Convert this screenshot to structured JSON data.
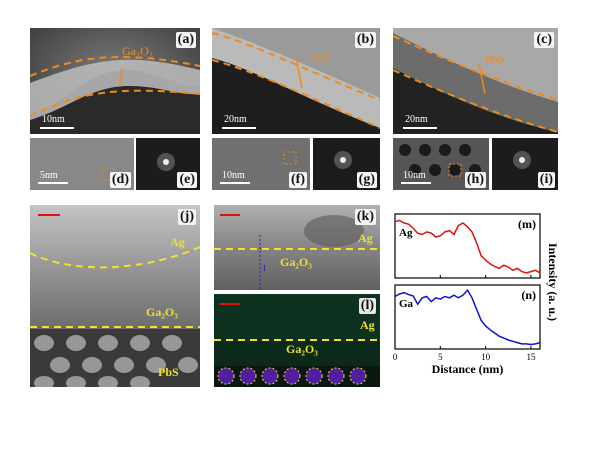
{
  "panels_top": {
    "a": {
      "label": "(a)",
      "material": "Ga₂O₃",
      "scale": "10nm"
    },
    "b": {
      "label": "(b)",
      "material": "PbS",
      "scale": "20nm"
    },
    "c": {
      "label": "(c)",
      "material": "PbS",
      "scale": "20nm"
    },
    "d": {
      "label": "(d)",
      "scale": "5nm"
    },
    "e": {
      "label": "(e)"
    },
    "f": {
      "label": "(f)",
      "scale": "10nm"
    },
    "g": {
      "label": "(g)"
    },
    "h": {
      "label": "(h)",
      "scale": "10nm"
    },
    "i": {
      "label": "(i)"
    }
  },
  "panels_bottom": {
    "j": {
      "label": "(j)",
      "ag": "Ag",
      "ga2o3": "Ga₂O₃",
      "pbs": "PbS"
    },
    "k": {
      "label": "(k)",
      "ag": "Ag",
      "ga2o3": "Ga₂O₃",
      "marker": "1"
    },
    "l": {
      "label": "(l)",
      "ag": "Ag",
      "ga2o3": "Ga₂O₃"
    }
  },
  "chart_data": {
    "type": "line",
    "xlabel": "Distance (nm)",
    "ylabel": "Intensity (a. u.)",
    "xlim": [
      0,
      16
    ],
    "xticks": [
      "0",
      "5",
      "10",
      "15"
    ],
    "panels": [
      {
        "label": "(m)",
        "series": [
          {
            "name": "Ag",
            "color": "#dd1111",
            "x": [
              0,
              0.5,
              1,
              1.5,
              2,
              2.5,
              3,
              3.5,
              4,
              4.5,
              5,
              5.5,
              6,
              6.5,
              7,
              7.5,
              8,
              8.5,
              9,
              9.5,
              10,
              10.5,
              11,
              11.5,
              12,
              12.5,
              13,
              13.5,
              14,
              14.5,
              15,
              15.5,
              16
            ],
            "y": [
              0.88,
              0.9,
              0.86,
              0.84,
              0.78,
              0.7,
              0.68,
              0.72,
              0.7,
              0.64,
              0.66,
              0.72,
              0.74,
              0.68,
              0.82,
              0.86,
              0.8,
              0.72,
              0.55,
              0.35,
              0.28,
              0.22,
              0.18,
              0.15,
              0.2,
              0.17,
              0.12,
              0.15,
              0.1,
              0.08,
              0.1,
              0.12,
              0.08
            ]
          }
        ]
      },
      {
        "label": "(n)",
        "series": [
          {
            "name": "Ga",
            "color": "#1111cc",
            "x": [
              0,
              0.5,
              1,
              1.5,
              2,
              2.5,
              3,
              3.5,
              4,
              4.5,
              5,
              5.5,
              6,
              6.5,
              7,
              7.5,
              8,
              8.5,
              9,
              9.5,
              10,
              10.5,
              11,
              11.5,
              12,
              12.5,
              13,
              13.5,
              14,
              14.5,
              15,
              15.5,
              16
            ],
            "y": [
              0.82,
              0.86,
              0.88,
              0.85,
              0.83,
              0.7,
              0.8,
              0.82,
              0.74,
              0.8,
              0.78,
              0.82,
              0.8,
              0.84,
              0.8,
              0.84,
              0.92,
              0.8,
              0.62,
              0.45,
              0.36,
              0.3,
              0.25,
              0.2,
              0.17,
              0.14,
              0.12,
              0.1,
              0.08,
              0.08,
              0.07,
              0.08,
              0.1
            ]
          }
        ]
      }
    ]
  }
}
